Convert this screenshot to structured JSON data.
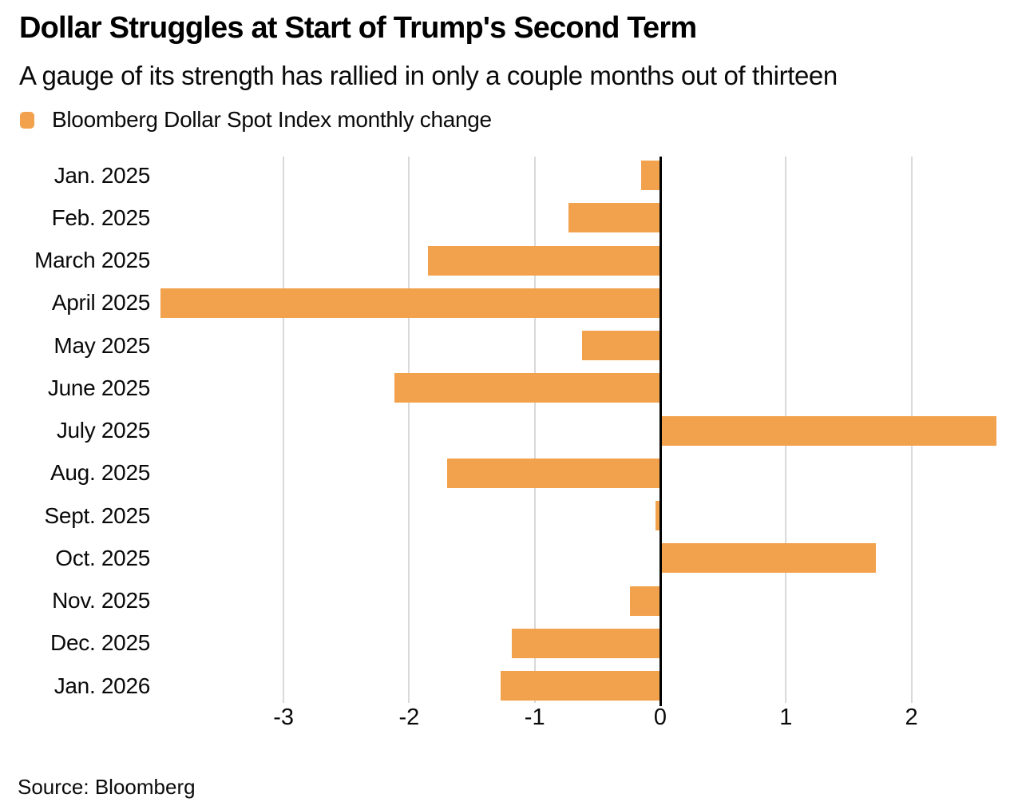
{
  "header": {
    "title": "Dollar Struggles at Start of Trump's Second Term",
    "subtitle": "A gauge of its strength has rallied in only a couple months out of thirteen"
  },
  "legend": {
    "label": "Bloomberg Dollar Spot Index monthly change",
    "swatch_color": "#F2A24D"
  },
  "chart_data": {
    "type": "bar",
    "orientation": "horizontal",
    "title": "Dollar Struggles at Start of Trump's Second Term",
    "subtitle": "A gauge of its strength has rallied in only a couple months out of thirteen",
    "series_name": "Bloomberg Dollar Spot Index monthly change",
    "categories": [
      "Jan. 2025",
      "Feb. 2025",
      "March 2025",
      "April 2025",
      "May 2025",
      "June 2025",
      "July 2025",
      "Aug. 2025",
      "Sept. 2025",
      "Oct. 2025",
      "Nov. 2025",
      "Dec. 2025",
      "Jan. 2026"
    ],
    "values": [
      -0.15,
      -0.73,
      -1.85,
      -3.98,
      -0.62,
      -2.12,
      2.67,
      -1.7,
      -0.04,
      1.71,
      -0.24,
      -1.18,
      -1.27
    ],
    "x_ticks": [
      -3,
      -2,
      -1,
      0,
      1,
      2
    ],
    "x_tick_labels": [
      "-3",
      "-2",
      "-1",
      "0",
      "1",
      "2"
    ],
    "xlim": [
      -4.0,
      2.68
    ],
    "grid": true,
    "bar_color": "#F2A24D",
    "gridline_color": "#d9d9d9",
    "zero_line_color": "#000000",
    "legend_position": "top-left"
  },
  "source": {
    "text": "Source: Bloomberg"
  }
}
